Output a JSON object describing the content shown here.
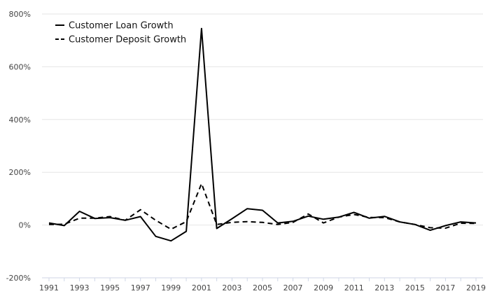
{
  "chart_data": {
    "type": "line",
    "title": "",
    "xlabel": "",
    "ylabel": "",
    "x": [
      1991,
      1992,
      1993,
      1994,
      1995,
      1996,
      1997,
      1998,
      1999,
      2000,
      2001,
      2002,
      2003,
      2004,
      2005,
      2006,
      2007,
      2008,
      2009,
      2010,
      2011,
      2012,
      2013,
      2014,
      2015,
      2016,
      2017,
      2018,
      2019
    ],
    "x_tick_labels": [
      "1991",
      "1993",
      "1995",
      "1997",
      "1999",
      "2001",
      "2003",
      "2005",
      "2007",
      "2009",
      "2011",
      "2013",
      "2015",
      "2017",
      "2019"
    ],
    "y_tick_labels": [
      "800%",
      "600%",
      "400%",
      "200%",
      "0%",
      "-200%"
    ],
    "ylim": [
      -200,
      800
    ],
    "y_unit": "%",
    "grid": "horizontal",
    "legend_position": "top-left",
    "series": [
      {
        "name": "Customer Loan Growth",
        "style": "solid",
        "color": "#000000",
        "values": [
          8,
          -2,
          52,
          25,
          28,
          18,
          32,
          -43,
          -60,
          -24,
          745,
          -13,
          24,
          62,
          56,
          8,
          14,
          34,
          22,
          30,
          48,
          26,
          33,
          12,
          2,
          -20,
          -2,
          12,
          8
        ]
      },
      {
        "name": "Customer Deposit Growth",
        "style": "dashed",
        "color": "#000000",
        "values": [
          2,
          3,
          26,
          26,
          32,
          18,
          58,
          18,
          -16,
          13,
          157,
          2,
          10,
          13,
          10,
          2,
          10,
          42,
          8,
          30,
          40,
          29,
          28,
          12,
          2,
          -10,
          -12,
          7,
          6
        ]
      }
    ]
  }
}
